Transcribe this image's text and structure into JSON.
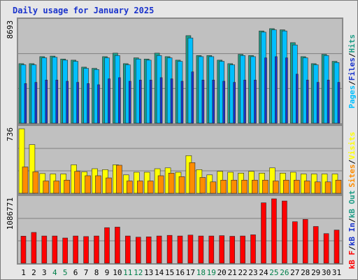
{
  "chart_data": {
    "type": "bar",
    "title": "Daily usage for January 2025",
    "categories": [
      "1",
      "2",
      "3",
      "4",
      "5",
      "6",
      "7",
      "8",
      "9",
      "10",
      "11",
      "12",
      "13",
      "14",
      "15",
      "16",
      "17",
      "18",
      "19",
      "20",
      "21",
      "22",
      "23",
      "24",
      "25",
      "26",
      "27",
      "28",
      "29",
      "30",
      "31"
    ],
    "weekend_days": [
      4,
      5,
      11,
      12,
      18,
      19,
      25,
      26
    ],
    "panels": [
      {
        "name": "requests",
        "ymax": 8693,
        "ymax_label": "8693",
        "right_labels": [
          "Pages",
          "Files",
          "Hits"
        ],
        "series": [
          {
            "name": "Hits",
            "color": "#1e9c86",
            "values": [
              5100,
              5100,
              5700,
              5750,
              5500,
              5400,
              4800,
              4700,
              5700,
              6000,
              5100,
              5600,
              5500,
              6000,
              5700,
              5400,
              7500,
              5800,
              5800,
              5400,
              5100,
              5900,
              5800,
              7900,
              8100,
              8000,
              6900,
              5700,
              5100,
              5900,
              5300
            ]
          },
          {
            "name": "Files",
            "color": "#00bfff",
            "values": [
              5000,
              5000,
              5600,
              5650,
              5400,
              5300,
              4700,
              4600,
              5600,
              5800,
              5000,
              5500,
              5400,
              5800,
              5600,
              5300,
              7300,
              5700,
              5700,
              5300,
              5000,
              5800,
              5700,
              7800,
              8000,
              7900,
              6700,
              5600,
              5000,
              5800,
              5200
            ]
          },
          {
            "name": "Pages",
            "color": "#1a33cc",
            "values": [
              3400,
              3500,
              3700,
              3700,
              3600,
              3500,
              3400,
              3300,
              3800,
              3900,
              3600,
              3700,
              3700,
              3900,
              3800,
              3600,
              4400,
              3700,
              3700,
              3600,
              3500,
              3700,
              3700,
              5600,
              5700,
              5600,
              4200,
              3700,
              3500,
              3700,
              3500
            ]
          }
        ]
      },
      {
        "name": "visits",
        "ymax": 736,
        "ymax_label": "736",
        "right_labels": [
          "Sites",
          "Visits"
        ],
        "series": [
          {
            "name": "Visits",
            "color": "#ffff00",
            "values": [
              736,
              555,
              225,
              220,
              220,
              325,
              245,
              280,
              270,
              325,
              210,
              240,
              240,
              280,
              290,
              240,
              430,
              270,
              210,
              250,
              240,
              230,
              250,
              230,
              290,
              230,
              240,
              220,
              220,
              220,
              220
            ]
          },
          {
            "name": "Sites",
            "color": "#ff8c00",
            "values": [
              300,
              245,
              140,
              140,
              150,
              250,
              200,
              200,
              175,
              320,
              140,
              140,
              140,
              200,
              230,
              190,
              350,
              180,
              130,
              150,
              150,
              150,
              150,
              150,
              140,
              150,
              150,
              140,
              130,
              130,
              150
            ]
          }
        ]
      },
      {
        "name": "kbytes",
        "ymax": 1086771,
        "ymax_label": "1086771",
        "right_labels": [
          "kB F",
          "kB In",
          "kB Out"
        ],
        "series": [
          {
            "name": "kB F",
            "color": "#ff0000",
            "values": [
              457000,
              520000,
              460000,
              460000,
              425000,
              460000,
              450000,
              460000,
              600000,
              610000,
              460000,
              440000,
              445000,
              460000,
              470000,
              460000,
              475000,
              460000,
              460000,
              465000,
              455000,
              460000,
              480000,
              1020000,
              1086771,
              1050000,
              700000,
              740000,
              620000,
              500000,
              560000
            ]
          }
        ]
      }
    ]
  },
  "colors": {
    "panel_bg": "#c0c0c0",
    "gridline": "#808080",
    "frame_bg": "#e6e6e6",
    "weekday_label": "#000000",
    "weekend_label": "#00804a",
    "title": "#1a33cc"
  }
}
